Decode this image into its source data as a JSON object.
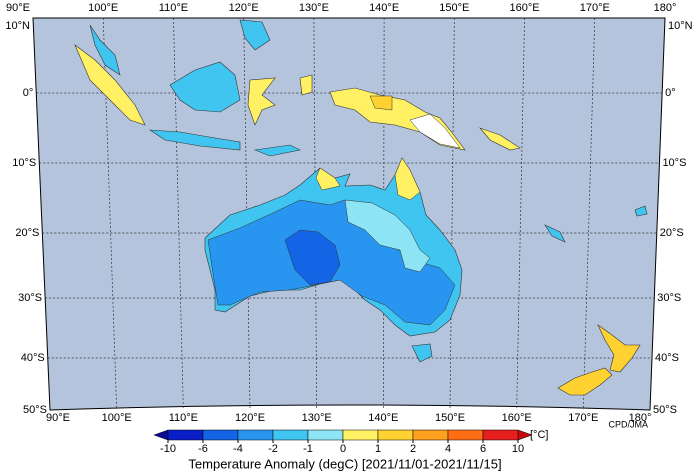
{
  "map": {
    "lon_labels": [
      "90°E",
      "100°E",
      "110°E",
      "120°E",
      "130°E",
      "140°E",
      "150°E",
      "160°E",
      "170°E",
      "180°"
    ],
    "lat_labels": [
      "10°N",
      "0°",
      "10°S",
      "20°S",
      "30°S",
      "40°S",
      "50°S"
    ]
  },
  "colorbar": {
    "ticks": [
      -10,
      -6,
      -4,
      -2,
      -1,
      0,
      1,
      2,
      4,
      6,
      10
    ],
    "colors": [
      "#0a1ec8",
      "#1464e6",
      "#2896f0",
      "#40c4f0",
      "#8ce4f4",
      "#fff064",
      "#ffd232",
      "#ffa01e",
      "#ff6e14",
      "#e61e1e"
    ],
    "low_color": "#0a0a96",
    "high_color": "#c80a0a",
    "unit": "[°C]",
    "title": "Temperature Anomaly (degC) [2021/11/01-2021/11/15]"
  },
  "credit": "CPD/JMA"
}
